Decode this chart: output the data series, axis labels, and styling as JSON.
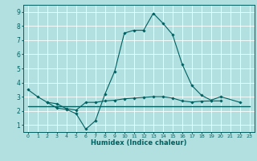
{
  "xlabel": "Humidex (Indice chaleur)",
  "line1_x": [
    0,
    1,
    2,
    3,
    4,
    5,
    6,
    7,
    8,
    9,
    10,
    11,
    12,
    13,
    14,
    15,
    16,
    17,
    18,
    19,
    20,
    22
  ],
  "line1_y": [
    3.5,
    3.0,
    2.6,
    2.2,
    2.1,
    1.8,
    0.7,
    1.3,
    3.2,
    4.8,
    7.5,
    7.7,
    7.7,
    8.9,
    8.2,
    7.4,
    5.3,
    3.8,
    3.1,
    2.75,
    3.0,
    2.6
  ],
  "line2_x": [
    2,
    3,
    4,
    5,
    6,
    7,
    8,
    9,
    10,
    11,
    12,
    13,
    14,
    15,
    16,
    17,
    18,
    19,
    20
  ],
  "line2_y": [
    2.6,
    2.5,
    2.15,
    2.05,
    2.6,
    2.6,
    2.7,
    2.75,
    2.85,
    2.9,
    2.95,
    3.0,
    3.0,
    2.9,
    2.7,
    2.62,
    2.68,
    2.7,
    2.7
  ],
  "flat_line_x": [
    0,
    23
  ],
  "flat_line_y": [
    2.3,
    2.3
  ],
  "line_color": "#006060",
  "bg_color": "#b2e0e0",
  "grid_color": "#ffffff",
  "ylim": [
    0.5,
    9.5
  ],
  "xlim": [
    -0.5,
    23.5
  ],
  "yticks": [
    1,
    2,
    3,
    4,
    5,
    6,
    7,
    8,
    9
  ],
  "xticks": [
    0,
    1,
    2,
    3,
    4,
    5,
    6,
    7,
    8,
    9,
    10,
    11,
    12,
    13,
    14,
    15,
    16,
    17,
    18,
    19,
    20,
    21,
    22,
    23
  ]
}
